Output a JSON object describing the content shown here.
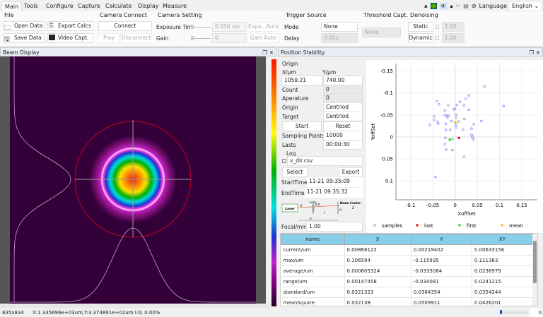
{
  "tabs": [
    "Main",
    "Tools",
    "Configure",
    "Capture",
    "Calculate",
    "Display",
    "Measure"
  ],
  "toolbar": {
    "language_label": "Language",
    "language": "English",
    "icons": [
      "collapse-icon",
      "colormap-icon",
      "pin-icon",
      "lock-icon",
      "crosshair-icon",
      "document-icon",
      "help-icon"
    ]
  },
  "file": {
    "title": "File",
    "open": "Open Data",
    "save": "Save Data",
    "export": "Export Calcs",
    "video": "Video Capt."
  },
  "camera_connect": {
    "title": "Camera Connect",
    "connect": "Connect",
    "play": "Play",
    "disconnect": "Disconnect"
  },
  "camera_setting": {
    "title": "Camera Setting",
    "exposure_label": "Exposure Tim",
    "exposure_value": "0.050 ms",
    "expo_auto": "Expo...Auto",
    "gain_label": "Gain",
    "gain_value": "0",
    "gain_auto": "Gain Auto"
  },
  "trigger": {
    "title": "Trigger Source",
    "mode_label": "Mode",
    "mode_value": "None",
    "delay_label": "Delay",
    "delay_value": "0.00s"
  },
  "threshold": {
    "title": "Threshold Capt.",
    "value": "None"
  },
  "denoising": {
    "title": "Denoising",
    "static": "Static",
    "static_value": "1.00",
    "dynamic": "Dynamic",
    "dynamic_value": "1.00"
  },
  "beam_display": {
    "title": "Beam Display",
    "colors": {
      "background": "#33003a",
      "circle": "#c0001e"
    }
  },
  "position_stability": {
    "title": "Position Stability",
    "form": {
      "origin_title": "Origin",
      "x_label": "X/μm",
      "y_label": "Y/μm",
      "x_value": "1059.21",
      "y_value": "740.00",
      "count_label": "Count",
      "count_value": "0",
      "aperature_label": "Aperature",
      "aperature_value": "0",
      "origin_label": "Origin",
      "origin_value": "Centriod",
      "target_label": "Target",
      "target_value": "Centriod",
      "start": "Start",
      "reset": "Reset",
      "sampling_label": "Sampling Points",
      "sampling_value": "10000",
      "lasts_label": "Lasts",
      "lasts_value": "00:00:30",
      "log_title": "Log",
      "log_file": "v_dir.csv",
      "select": "Select",
      "export": "Export",
      "start_time_label": "StartTime",
      "start_time": "11-21 09:35:09",
      "end_time_label": "EndTime",
      "end_time": "11-21 09:35:32",
      "diagram": {
        "laser": "Laser",
        "lens": "Lens",
        "beam_center": "Beam Center",
        "theta": "θ",
        "delta_theta": "Δ θ",
        "f": "f",
        "d": "d",
        "o": "O",
        "z": "Z"
      },
      "focal_label": "Focal/mm",
      "focal_value": "1.00"
    }
  },
  "chart_data": {
    "type": "scatter",
    "xlabel": "XoffSet",
    "ylabel": "YoffSet",
    "xlim": [
      -0.133,
      0.185
    ],
    "ylim": [
      -0.167,
      0.143
    ],
    "y_inverted": true,
    "grid": true,
    "legend_placement": "bottom",
    "xticks": [
      "-0.1",
      "-0.05",
      "0",
      "0.05",
      "0.1",
      "0.15"
    ],
    "xtick_values": [
      -0.1,
      -0.05,
      0,
      0.05,
      0.1,
      0.15
    ],
    "yticks": [
      "-0.15",
      "-0.1",
      "-0.05",
      "0",
      "0.05",
      "0.1"
    ],
    "ytick_values": [
      -0.15,
      -0.1,
      -0.05,
      0,
      0.05,
      0.1
    ],
    "series": [
      {
        "name": "samples",
        "color": "#8888ee",
        "points": [
          [
            0.066,
            -0.115
          ],
          [
            0.109,
            -0.07
          ],
          [
            0.031,
            -0.095
          ],
          [
            0.024,
            -0.087
          ],
          [
            -0.041,
            -0.081
          ],
          [
            -0.036,
            -0.074
          ],
          [
            -0.015,
            -0.072
          ],
          [
            0.004,
            -0.073
          ],
          [
            0.011,
            -0.08
          ],
          [
            0.02,
            -0.072
          ],
          [
            -0.023,
            -0.06
          ],
          [
            -0.003,
            -0.063
          ],
          [
            0,
            -0.064
          ],
          [
            0.031,
            -0.062
          ],
          [
            -0.047,
            -0.047
          ],
          [
            -0.023,
            -0.05
          ],
          [
            -0.018,
            -0.048
          ],
          [
            -0.015,
            -0.049
          ],
          [
            -0.017,
            -0.045
          ],
          [
            0.002,
            -0.051
          ],
          [
            0.003,
            -0.044
          ],
          [
            -0.047,
            -0.039
          ],
          [
            -0.039,
            -0.034
          ],
          [
            -0.038,
            -0.03
          ],
          [
            -0.008,
            -0.036
          ],
          [
            0.008,
            -0.035
          ],
          [
            0.021,
            -0.041
          ],
          [
            -0.057,
            -0.027
          ],
          [
            -0.021,
            -0.03
          ],
          [
            0.002,
            -0.028
          ],
          [
            0.002,
            -0.022
          ],
          [
            -0.021,
            -0.016
          ],
          [
            -0.011,
            -0.016
          ],
          [
            0.018,
            -0.016
          ],
          [
            0.042,
            -0.029
          ],
          [
            0.059,
            -0.036
          ],
          [
            0.037,
            -0.019
          ],
          [
            0.037,
            -0.005
          ],
          [
            0.039,
            -0.002
          ],
          [
            0.039,
            0.002
          ],
          [
            0.042,
            0.006
          ],
          [
            -0.022,
            0.002
          ],
          [
            -0.006,
            0.005
          ],
          [
            -0.023,
            0.017
          ],
          [
            -0.02,
            0.029
          ],
          [
            -0.006,
            0.03
          ],
          [
            0.02,
            0.045
          ],
          [
            -0.044,
            0.091
          ]
        ]
      },
      {
        "name": "last",
        "color": "#ee0000",
        "points": [
          [
            0.0087,
            0.0022
          ]
        ]
      },
      {
        "name": "first",
        "color": "#00dd00",
        "points": [
          [
            -0.012,
            0.006
          ]
        ]
      },
      {
        "name": "mean",
        "color": "#f5b800",
        "points": [
          [
            0.0006,
            -0.0335
          ]
        ]
      }
    ]
  },
  "stats_table": {
    "columns": [
      "name",
      "X",
      "Y",
      "XY"
    ],
    "rows": [
      [
        "current/um",
        "0.00868122",
        "0.00219402",
        "0.00633156"
      ],
      [
        "max/um",
        "0.106594",
        "-0.115935",
        "0.111363"
      ],
      [
        "average/um",
        "0.000605324",
        "-0.0335084",
        "0.0236979"
      ],
      [
        "range/um",
        "0.00147458",
        "-0.034081",
        "0.0241215"
      ],
      [
        "standard/um",
        "0.0321323",
        "0.0384354",
        "0.0354244"
      ],
      [
        "meanSquare",
        "0.032138",
        "0.0509911",
        "0.0426201"
      ]
    ]
  },
  "status": {
    "resolution": "835x834",
    "readout": "X:1.335696e+03um,Y:3.374891e+02um I:0; 0.00%",
    "slider_value": "0"
  }
}
